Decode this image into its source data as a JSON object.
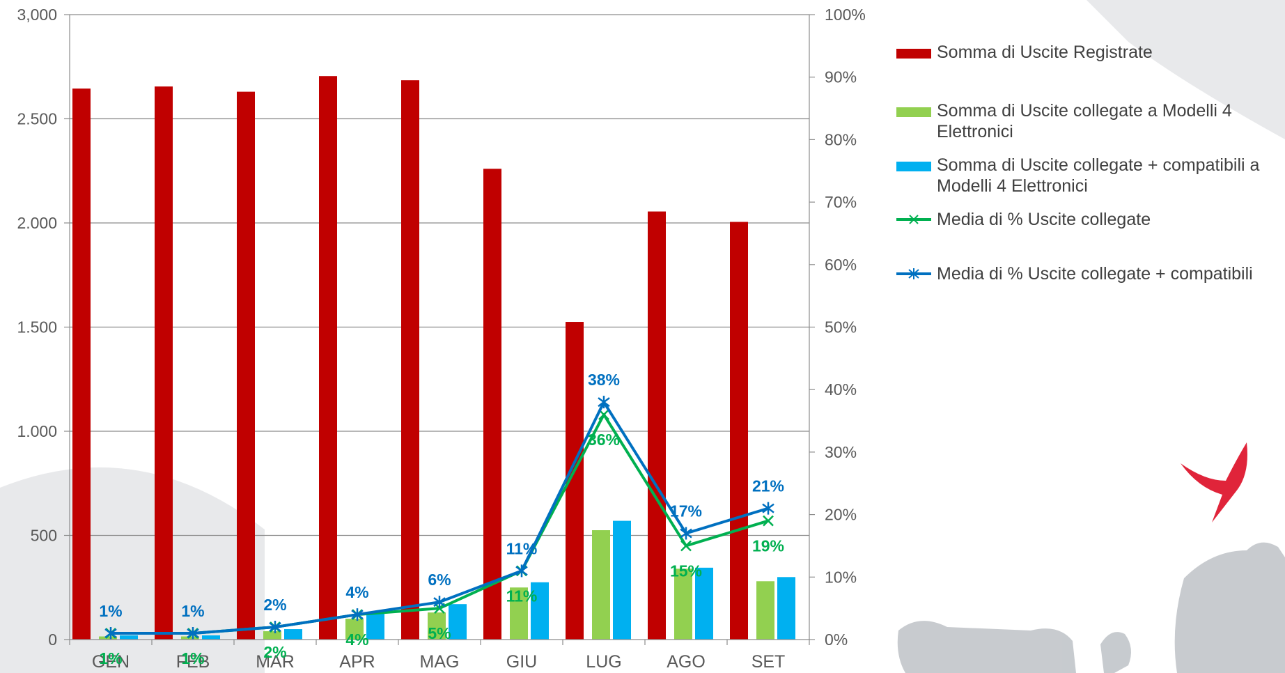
{
  "colors": {
    "registrate": "#C00000",
    "collegate": "#92D050",
    "compatibili": "#00B0F0",
    "pct_collegate": "#00B050",
    "pct_compatibili": "#0070C0",
    "axis_text": "#595959",
    "grid": "#8C8C8C"
  },
  "chart_data": {
    "type": "bar",
    "categories": [
      "GEN",
      "FEB",
      "MAR",
      "APR",
      "MAG",
      "GIU",
      "LUG",
      "AGO",
      "SET"
    ],
    "y_left": {
      "ylim": [
        0,
        3000
      ],
      "ticks": [
        0,
        500,
        1000,
        1500,
        2000,
        2500,
        3000
      ],
      "tick_labels": [
        "0",
        "500",
        "1.000",
        "1.500",
        "2.000",
        "2.500",
        "3,000"
      ]
    },
    "y_right": {
      "ylim": [
        0,
        100
      ],
      "ticks": [
        0,
        10,
        20,
        30,
        40,
        50,
        60,
        70,
        80,
        90,
        100
      ],
      "tick_labels": [
        "0%",
        "10%",
        "20%",
        "30%",
        "40%",
        "50%",
        "60%",
        "70%",
        "80%",
        "90%",
        "100%"
      ]
    },
    "grid": true,
    "legend_position": "right",
    "series": [
      {
        "name": "Somma di Uscite Registrate",
        "type": "bar",
        "axis": "left",
        "values": [
          2645,
          2655,
          2630,
          2705,
          2685,
          2260,
          1525,
          2055,
          2005
        ]
      },
      {
        "name": "Somma di Uscite collegate a Modelli 4 Elettronici",
        "type": "bar",
        "axis": "left",
        "values": [
          15,
          15,
          40,
          100,
          130,
          250,
          525,
          340,
          280
        ]
      },
      {
        "name": "Somma di Uscite collegate + compatibili a Modelli 4 Elettronici",
        "type": "bar",
        "axis": "left",
        "values": [
          20,
          20,
          50,
          125,
          170,
          275,
          570,
          345,
          300
        ]
      },
      {
        "name": "Media di % Uscite collegate",
        "type": "line",
        "axis": "right",
        "values": [
          1,
          1,
          2,
          4,
          5,
          11,
          36,
          15,
          19
        ],
        "labels": [
          "1%",
          "1%",
          "2%",
          "4%",
          "5%",
          "11%",
          "36%",
          "15%",
          "19%"
        ]
      },
      {
        "name": "Media di % Uscite collegate + compatibili",
        "type": "line",
        "axis": "right",
        "values": [
          1,
          1,
          2,
          4,
          6,
          11,
          38,
          17,
          21
        ],
        "labels": [
          "1%",
          "1%",
          "2%",
          "4%",
          "6%",
          "11%",
          "38%",
          "17%",
          "21%"
        ]
      }
    ]
  }
}
